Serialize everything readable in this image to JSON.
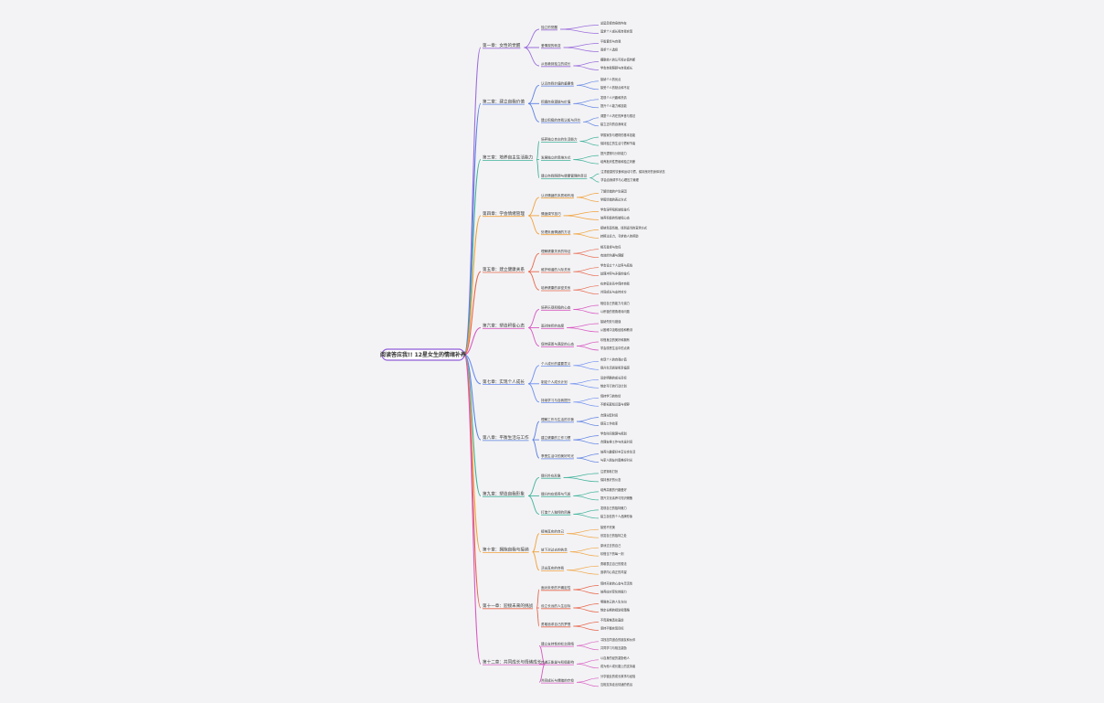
{
  "root": {
    "label": "阅读答应我!! 12星女生的情绪补养"
  },
  "colors": {
    "background": "#f3f3f5",
    "root_border": "#8e5bd6",
    "chapters": [
      "#9b6ddc",
      "#5b7fe3",
      "#3fb29a",
      "#f1a13a",
      "#e8654a",
      "#d859c2",
      "#6b8cf0",
      "#5b7fe3",
      "#3fb29a",
      "#f1a13a",
      "#e8654a",
      "#d859c2"
    ]
  },
  "chapters": [
    {
      "label": "第一章：女性的觉醒",
      "children": [
        {
          "label": "独立的觉醒",
          "leaves": [
            "总是忽视自身的内在",
            "追求个人成长和自我实现"
          ]
        },
        {
          "label": "爱情观的转变",
          "leaves": [
            "平衡爱情与自我",
            "尊重个人选择"
          ]
        },
        {
          "label": "从依赖到独立的成长",
          "leaves": [
            "摆脱他人的认可和价值判断",
            "学会自我照顾与自我成长"
          ]
        }
      ]
    },
    {
      "label": "第二章：建立自我价值",
      "children": [
        {
          "label": "认识自我价值的重要性",
          "leaves": [
            "接纳个人的优点",
            "接受个人的缺点和不足"
          ]
        },
        {
          "label": "挖掘自身潜能与价值",
          "leaves": [
            "发现个人兴趣和热情",
            "提升个人能力和技能"
          ]
        },
        {
          "label": "建立积极的自我认知与评价",
          "leaves": [
            "调整个人内在的声音与想法",
            "建立正向的自我肯定"
          ]
        }
      ]
    },
    {
      "label": "第三章：培养自主生活能力",
      "children": [
        {
          "label": "培养独立自主的生活能力",
          "leaves": [
            "掌握家务与理财的基本技能",
            "保持独立的生活习惯和节奏"
          ]
        },
        {
          "label": "发展独立的思维方式",
          "leaves": [
            "提升逻辑与分析能力",
            "培养批判性思维和独立判断"
          ]
        },
        {
          "label": "建立自我照顾与健康管理的意识",
          "leaves": [
            "注重健康的饮食和运动习惯，保持良好的身体状态",
            "学会自我调节与心理压力管理"
          ]
        }
      ]
    },
    {
      "label": "第四章：学会情绪管理",
      "children": [
        {
          "label": "认识情绪的本质和作用",
          "leaves": [
            "了解情绪的产生原因",
            "掌握情绪的表达方式"
          ]
        },
        {
          "label": "情绪调节技巧",
          "leaves": [
            "学会深呼吸和放松技巧",
            "培养积极的情绪和心态"
          ]
        },
        {
          "label": "处理负面情绪的方法",
          "leaves": [
            "接纳负面情绪，找到适当的宣泄方式",
            "转移注意力，寻求他人的帮助"
          ]
        }
      ]
    },
    {
      "label": "第五章：建立健康关系",
      "children": [
        {
          "label": "理解健康关系的特征",
          "leaves": [
            "相互尊重与信任",
            "有效的沟通与理解"
          ]
        },
        {
          "label": "维护和谐的人际关系",
          "leaves": [
            "学会设立个人边界与底线",
            "处理冲突与矛盾的技巧"
          ]
        },
        {
          "label": "培养健康的亲密关系",
          "leaves": [
            "在亲密关系中保持自我",
            "共同成长与支持对方"
          ]
        }
      ]
    },
    {
      "label": "第六章：塑造积极心态",
      "children": [
        {
          "label": "培养乐观积极的心态",
          "leaves": [
            "相信自己的能力与潜力",
            "以积极的视角看待问题"
          ]
        },
        {
          "label": "面对挫折的态度",
          "leaves": [
            "接纳失败与错误",
            "从困难中汲取经验和教训"
          ]
        },
        {
          "label": "保持感恩与满足的心态",
          "leaves": [
            "珍惜身边的美好和拥有",
            "学会感恩生活中的点滴"
          ]
        }
      ]
    },
    {
      "label": "第七章：实现个人成长",
      "children": [
        {
          "label": "个人成长的重要意义",
          "leaves": [
            "实现个人的自我价值",
            "提升生活质量和幸福感"
          ]
        },
        {
          "label": "制定个人成长计划",
          "leaves": [
            "设定明确的成长目标",
            "制定可行的行动计划"
          ]
        },
        {
          "label": "持续学习与自我提升",
          "leaves": [
            "保持学习的热情",
            "不断拓宽知识面与视野"
          ]
        }
      ]
    },
    {
      "label": "第八章：平衡生活与工作",
      "children": [
        {
          "label": "理解工作与生活的平衡",
          "leaves": [
            "合理分配时间",
            "提高工作效率"
          ]
        },
        {
          "label": "建立健康的工作习惯",
          "leaves": [
            "学会时间管理与规划",
            "合理安排工作与休息时间"
          ]
        },
        {
          "label": "享受生活中的美好时光",
          "leaves": [
            "培养兴趣爱好丰富业余生活",
            "与家人朋友共度美好时光"
          ]
        }
      ]
    },
    {
      "label": "第九章：塑造自我形象",
      "children": [
        {
          "label": "提升外在形象",
          "leaves": [
            "注重穿着打扮",
            "保持良好的仪态"
          ]
        },
        {
          "label": "提升内在修养与气质",
          "leaves": [
            "培养高雅的兴趣爱好",
            "提升文化素养与知识储备"
          ]
        },
        {
          "label": "打造个人独特的风格",
          "leaves": [
            "发现自己的独特魅力",
            "建立自信的个人品牌形象"
          ]
        }
      ]
    },
    {
      "label": "第十章：拥抱自我与接纳",
      "children": [
        {
          "label": "接纳真实的自己",
          "leaves": [
            "接受不完美",
            "欣赏自己的独特之处"
          ]
        },
        {
          "label": "放下对过去的执念",
          "leaves": [
            "原谅过去的自己",
            "珍惜当下的每一刻"
          ]
        },
        {
          "label": "活出真实的自我",
          "leaves": [
            "勇敢表达自己的想法",
            "追求内心真正的渴望"
          ]
        }
      ]
    },
    {
      "label": "第十一章：迎接未来的挑战",
      "children": [
        {
          "label": "面对未来的不确定性",
          "leaves": [
            "保持开放的心态与灵活性",
            "培养应对变化的能力"
          ]
        },
        {
          "label": "设立长远的人生目标",
          "leaves": [
            "明确自己的人生方向",
            "制定长期的规划和策略"
          ]
        },
        {
          "label": "勇敢追求自己的梦想",
          "leaves": [
            "不畏艰难勇往直前",
            "坚持不懈实现目标"
          ]
        }
      ]
    },
    {
      "label": "第十二章：共同成长与情绪成长",
      "children": [
        {
          "label": "建立支持性的社交网络",
          "leaves": [
            "寻找志同道合的朋友和伙伴",
            "共同学习与相互激励"
          ]
        },
        {
          "label": "传递正能量与积极影响",
          "leaves": [
            "以自身的经历激励他人",
            "成为他人成长路上的支持者"
          ]
        },
        {
          "label": "共同成长与情绪的疗愈",
          "leaves": [
            "分享彼此的成长故事与经验",
            "互相支持走出情绪的低谷"
          ]
        }
      ]
    }
  ]
}
